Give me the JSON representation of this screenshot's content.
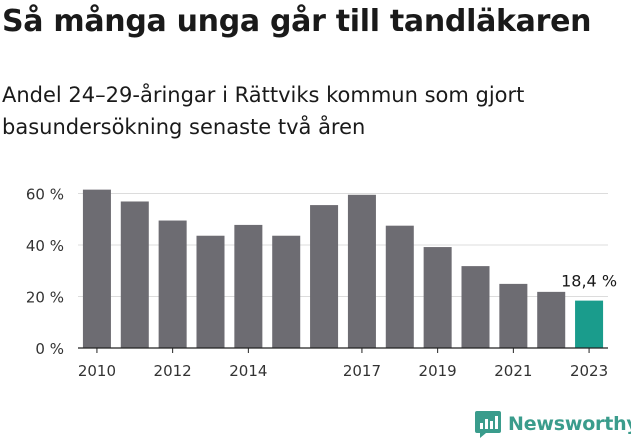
{
  "header": {
    "title": "Så många unga går till tandläkaren",
    "subtitle": "Andel 24–29-åringar i Rättviks kommun som gjort basundersökning senaste två åren"
  },
  "brand": {
    "name": "Newsworthy",
    "icon": "newsworthy-logo-icon",
    "color": "#3a9c8c"
  },
  "colors": {
    "bar": "#6d6c72",
    "highlight": "#1a9c8c",
    "grid": "#dcdcdc",
    "axis": "#222222"
  },
  "chart_data": {
    "type": "bar",
    "categories": [
      "2010",
      "2011",
      "2012",
      "2013",
      "2014",
      "2015",
      "2016",
      "2017",
      "2018",
      "2019",
      "2020",
      "2021",
      "2022",
      "2023"
    ],
    "values": [
      61.5,
      56.9,
      49.5,
      43.6,
      47.8,
      43.6,
      55.5,
      59.5,
      47.5,
      39.2,
      31.8,
      24.9,
      21.8,
      18.4
    ],
    "highlight_index": 13,
    "highlight_label": "18,4 %",
    "x_tick_labels": [
      "2010",
      "2012",
      "2014",
      "2017",
      "2019",
      "2021",
      "2023"
    ],
    "y_ticks": [
      0,
      20,
      40,
      60
    ],
    "y_tick_labels": [
      "0 %",
      "20 %",
      "40 %",
      "60 %"
    ],
    "ylim": [
      0,
      62
    ],
    "grid": true,
    "xlabel": "",
    "ylabel": ""
  }
}
